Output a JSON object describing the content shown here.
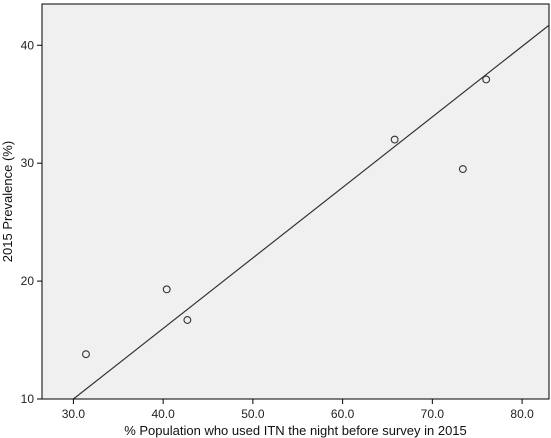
{
  "colors": {
    "plot_background": "#f0f0f0",
    "axis": "#000000",
    "marker_stroke": "#333333",
    "fit_line": "#333333"
  },
  "chart_data": {
    "type": "scatter",
    "title": "",
    "xlabel": "% Population who used ITN the night before survey in 2015",
    "ylabel": "2015 Prevalence (%)",
    "xlim": [
      26.5,
      83.0
    ],
    "ylim": [
      10,
      43.5
    ],
    "xticks": [
      30.0,
      40.0,
      50.0,
      60.0,
      70.0,
      80.0
    ],
    "xtick_labels": [
      "30.0",
      "40.0",
      "50.0",
      "60.0",
      "70.0",
      "80.0"
    ],
    "yticks": [
      10,
      20,
      30,
      40
    ],
    "ytick_labels": [
      "10",
      "20",
      "30",
      "40"
    ],
    "grid": false,
    "legend": "none",
    "marker": "open-circle",
    "points": [
      {
        "x": 31.4,
        "y": 13.8
      },
      {
        "x": 40.4,
        "y": 19.3
      },
      {
        "x": 42.7,
        "y": 16.7
      },
      {
        "x": 65.8,
        "y": 32.0
      },
      {
        "x": 73.4,
        "y": 29.5
      },
      {
        "x": 76.0,
        "y": 37.1
      }
    ],
    "fit_line": {
      "type": "linear",
      "points": [
        {
          "x": 30.0,
          "y": 10.0
        },
        {
          "x": 83.0,
          "y": 41.7
        }
      ]
    }
  }
}
